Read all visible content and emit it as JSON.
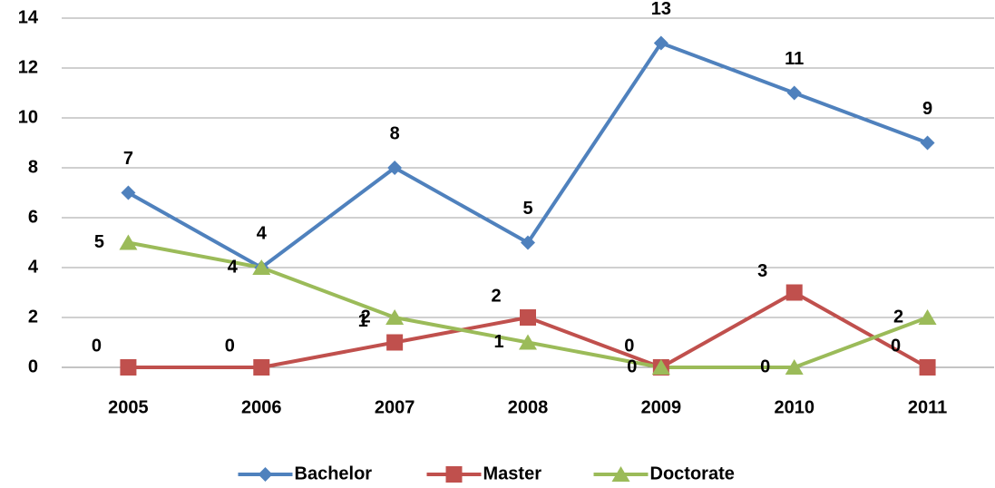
{
  "chart_data": {
    "type": "line",
    "categories": [
      "2005",
      "2006",
      "2007",
      "2008",
      "2009",
      "2010",
      "2011"
    ],
    "series": [
      {
        "name": "Bachelor",
        "color": "#4f81bd",
        "marker": "diamond",
        "values": [
          7,
          4,
          8,
          5,
          13,
          11,
          9
        ]
      },
      {
        "name": "Master",
        "color": "#c0504d",
        "marker": "square",
        "values": [
          0,
          0,
          1,
          2,
          0,
          3,
          0
        ]
      },
      {
        "name": "Doctorate",
        "color": "#9bbb59",
        "marker": "triangle",
        "values": [
          5,
          4,
          2,
          1,
          0,
          0,
          2
        ]
      }
    ],
    "ylim": [
      0,
      14
    ],
    "yticks": [
      0,
      2,
      4,
      6,
      8,
      10,
      12,
      14
    ],
    "grid": true,
    "legend": "bottom"
  }
}
